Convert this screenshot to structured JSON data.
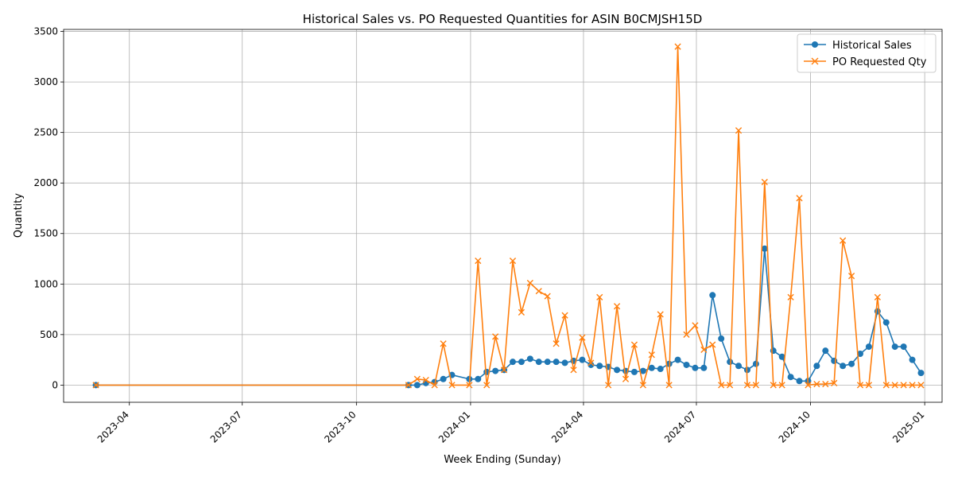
{
  "chart_data": {
    "type": "line",
    "title": "Historical Sales vs. PO Requested Quantities for ASIN B0CMJSH15D",
    "xlabel": "Week Ending (Sunday)",
    "ylabel": "Quantity",
    "xlim": [
      "2023-02-07",
      "2025-01-15"
    ],
    "ylim": [
      -170,
      3520
    ],
    "grid": true,
    "legend_position": "top-right",
    "x_ticks": [
      {
        "date": "2023-04-01",
        "label": "2023-04"
      },
      {
        "date": "2023-07-01",
        "label": "2023-07"
      },
      {
        "date": "2023-10-01",
        "label": "2023-10"
      },
      {
        "date": "2024-01-01",
        "label": "2024-01"
      },
      {
        "date": "2024-04-01",
        "label": "2024-04"
      },
      {
        "date": "2024-07-01",
        "label": "2024-07"
      },
      {
        "date": "2024-10-01",
        "label": "2024-10"
      },
      {
        "date": "2025-01-01",
        "label": "2025-01"
      }
    ],
    "y_ticks": [
      {
        "value": 0,
        "label": "0"
      },
      {
        "value": 500,
        "label": "500"
      },
      {
        "value": 1000,
        "label": "1000"
      },
      {
        "value": 1500,
        "label": "1500"
      },
      {
        "value": 2000,
        "label": "2000"
      },
      {
        "value": 2500,
        "label": "2500"
      },
      {
        "value": 3000,
        "label": "3000"
      },
      {
        "value": 3500,
        "label": "3500"
      }
    ],
    "series": [
      {
        "name": "Historical Sales",
        "color": "#1f77b4",
        "marker": "circle",
        "x": [
          "2023-03-05",
          "2023-11-12",
          "2023-11-19",
          "2023-11-26",
          "2023-12-03",
          "2023-12-10",
          "2023-12-17",
          "2023-12-31",
          "2024-01-07",
          "2024-01-14",
          "2024-01-21",
          "2024-01-28",
          "2024-02-04",
          "2024-02-11",
          "2024-02-18",
          "2024-02-25",
          "2024-03-03",
          "2024-03-10",
          "2024-03-17",
          "2024-03-24",
          "2024-03-31",
          "2024-04-07",
          "2024-04-14",
          "2024-04-21",
          "2024-04-28",
          "2024-05-05",
          "2024-05-12",
          "2024-05-19",
          "2024-05-26",
          "2024-06-02",
          "2024-06-09",
          "2024-06-16",
          "2024-06-23",
          "2024-06-30",
          "2024-07-07",
          "2024-07-14",
          "2024-07-21",
          "2024-07-28",
          "2024-08-04",
          "2024-08-11",
          "2024-08-18",
          "2024-08-25",
          "2024-09-01",
          "2024-09-08",
          "2024-09-15",
          "2024-09-22",
          "2024-09-29",
          "2024-10-06",
          "2024-10-13",
          "2024-10-20",
          "2024-10-27",
          "2024-11-03",
          "2024-11-10",
          "2024-11-17",
          "2024-11-24",
          "2024-12-01",
          "2024-12-08",
          "2024-12-15",
          "2024-12-22",
          "2024-12-29"
        ],
        "values": [
          0,
          0,
          0,
          20,
          30,
          60,
          100,
          60,
          60,
          130,
          140,
          150,
          230,
          230,
          260,
          230,
          230,
          230,
          220,
          240,
          250,
          200,
          190,
          180,
          150,
          140,
          130,
          140,
          170,
          160,
          210,
          250,
          200,
          170,
          170,
          890,
          460,
          230,
          190,
          150,
          210,
          1350,
          340,
          280,
          80,
          40,
          40,
          190,
          340,
          240,
          190,
          210,
          310,
          380,
          730,
          620,
          380,
          380,
          250,
          120
        ]
      },
      {
        "name": "PO Requested Qty",
        "color": "#ff7f0e",
        "marker": "x",
        "x": [
          "2023-03-05",
          "2023-11-12",
          "2023-11-19",
          "2023-11-26",
          "2023-12-03",
          "2023-12-10",
          "2023-12-17",
          "2023-12-31",
          "2024-01-07",
          "2024-01-14",
          "2024-01-21",
          "2024-01-28",
          "2024-02-04",
          "2024-02-11",
          "2024-02-18",
          "2024-02-25",
          "2024-03-03",
          "2024-03-10",
          "2024-03-17",
          "2024-03-24",
          "2024-03-31",
          "2024-04-07",
          "2024-04-14",
          "2024-04-21",
          "2024-04-28",
          "2024-05-05",
          "2024-05-12",
          "2024-05-19",
          "2024-05-26",
          "2024-06-02",
          "2024-06-09",
          "2024-06-16",
          "2024-06-23",
          "2024-06-30",
          "2024-07-07",
          "2024-07-14",
          "2024-07-21",
          "2024-07-28",
          "2024-08-04",
          "2024-08-11",
          "2024-08-18",
          "2024-08-25",
          "2024-09-01",
          "2024-09-08",
          "2024-09-15",
          "2024-09-22",
          "2024-09-29",
          "2024-10-06",
          "2024-10-13",
          "2024-10-20",
          "2024-10-27",
          "2024-11-03",
          "2024-11-10",
          "2024-11-17",
          "2024-11-24",
          "2024-12-01",
          "2024-12-08",
          "2024-12-15",
          "2024-12-22",
          "2024-12-29"
        ],
        "values": [
          0,
          0,
          60,
          50,
          0,
          410,
          0,
          0,
          1230,
          0,
          480,
          150,
          1230,
          720,
          1010,
          930,
          880,
          410,
          690,
          150,
          470,
          220,
          870,
          0,
          780,
          60,
          400,
          0,
          300,
          700,
          0,
          3350,
          500,
          590,
          350,
          400,
          0,
          0,
          2520,
          0,
          0,
          2010,
          0,
          0,
          870,
          1850,
          0,
          10,
          10,
          20,
          1430,
          1080,
          0,
          0,
          870,
          0,
          0,
          0,
          0,
          0
        ]
      }
    ]
  }
}
